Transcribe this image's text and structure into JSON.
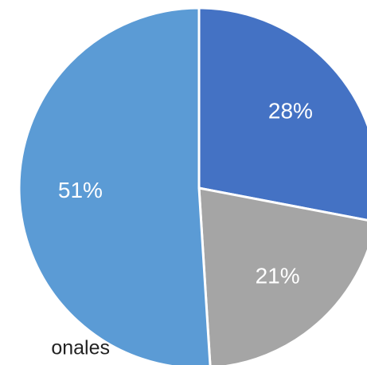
{
  "chart_data": {
    "type": "pie",
    "values": [
      28,
      21,
      51
    ],
    "value_labels": [
      "28%",
      "21%",
      "51%"
    ],
    "colors": [
      "#4472c4",
      "#a5a5a5",
      "#5b9bd5"
    ],
    "annotation": "onales"
  }
}
